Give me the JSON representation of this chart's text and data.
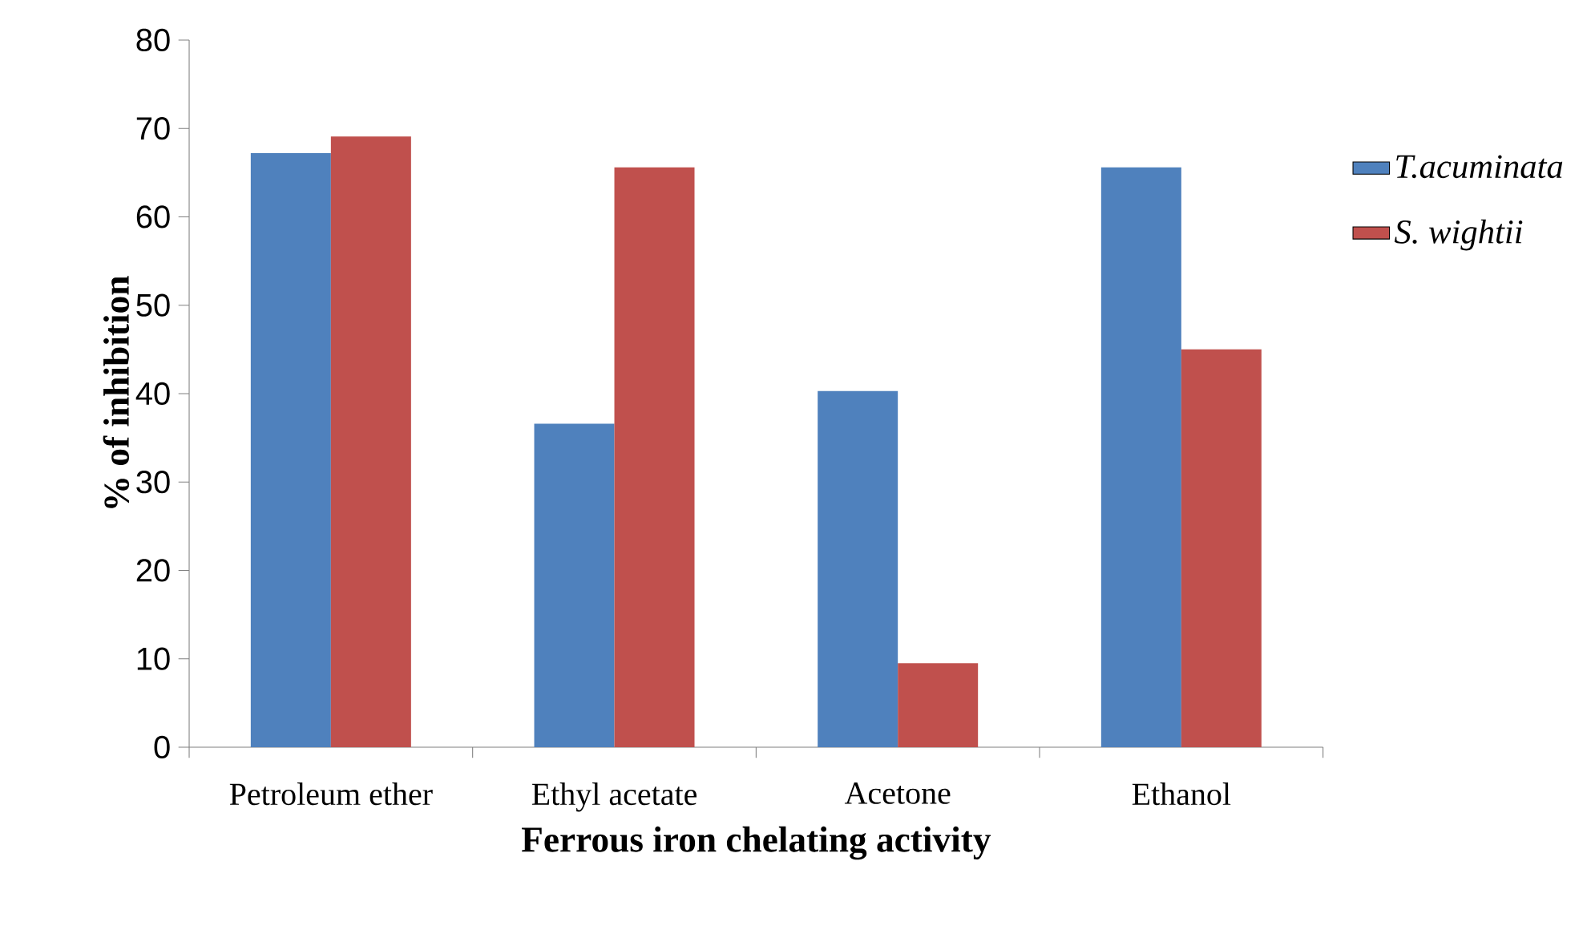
{
  "chart_data": {
    "type": "bar",
    "xlabel": "Ferrous iron chelating activity",
    "ylabel": "% of inhibition",
    "categories": [
      "Petroleum ether",
      "Ethyl acetate",
      "Acetone",
      "Ethanol"
    ],
    "series": [
      {
        "name": "T.acuminata",
        "color": "#4f81bd",
        "values": [
          67.2,
          36.6,
          40.3,
          65.6
        ]
      },
      {
        "name": "S. wightii",
        "color": "#c0504d",
        "values": [
          69.1,
          65.6,
          9.5,
          45.0
        ]
      }
    ],
    "ylim": [
      0,
      80
    ],
    "yticks": [
      0,
      10,
      20,
      30,
      40,
      50,
      60,
      70,
      80
    ],
    "grid": false,
    "legend": "right"
  }
}
